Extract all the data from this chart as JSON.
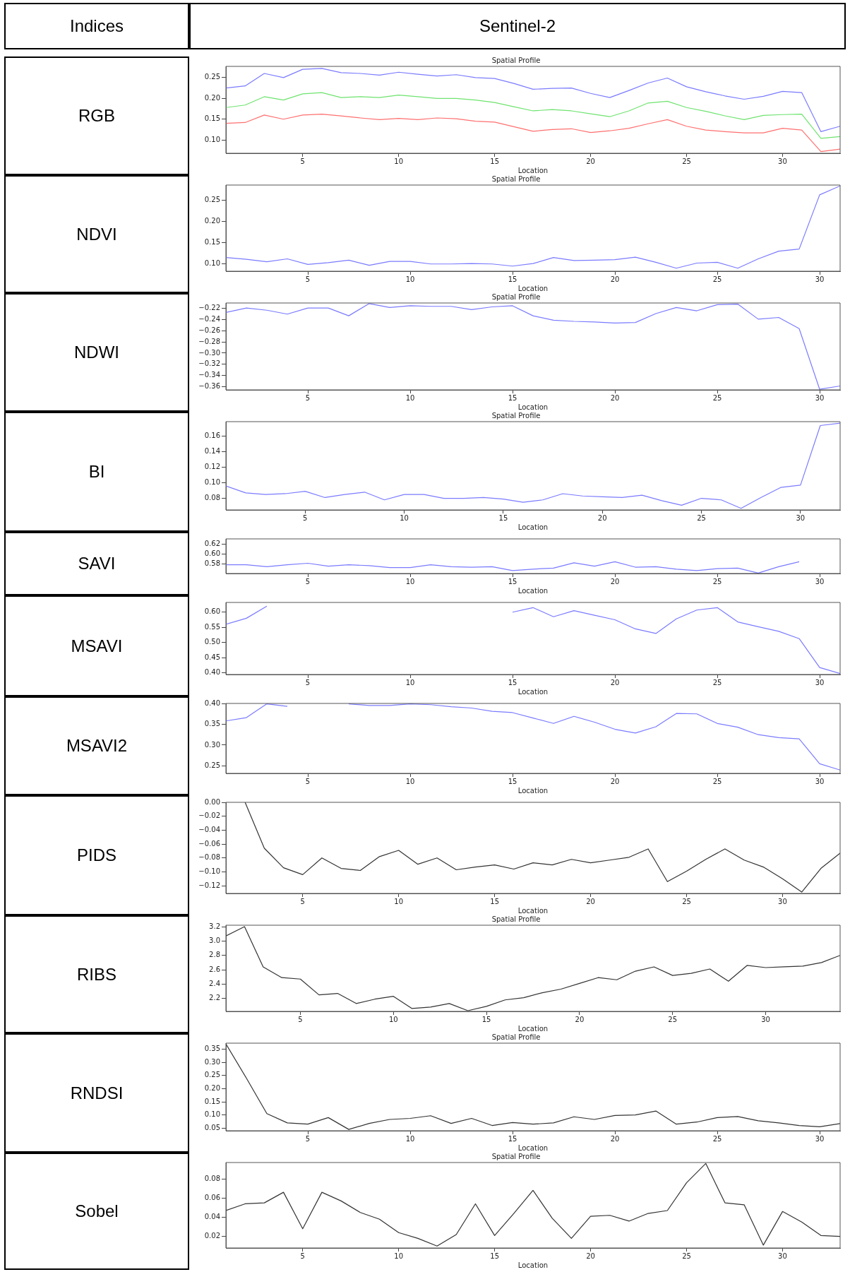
{
  "chart_data": [
    {
      "type": "line",
      "title": "Spatial Profile",
      "xlabel": "Location",
      "annotations": [
        "Indices",
        "Sentinel-2",
        "RGB"
      ],
      "xlim": [
        1,
        33
      ],
      "xticks": [
        5,
        10,
        15,
        20,
        25,
        30
      ],
      "ylim": [
        0.068,
        0.277
      ],
      "yticks": [
        {
          "value": 0.1,
          "label": "0.10"
        },
        0.15,
        {
          "value": 0.2,
          "label": "0.20"
        },
        0.25
      ],
      "grid": false,
      "legend": false,
      "x": [
        1,
        2,
        3,
        4,
        5,
        6,
        7,
        8,
        9,
        10,
        11,
        12,
        13,
        14,
        15,
        16,
        17,
        18,
        19,
        20,
        21,
        22,
        23,
        24,
        25,
        26,
        27,
        28,
        29,
        30,
        31,
        32,
        33
      ],
      "series": [
        {
          "color": "#7b7bff",
          "values": [
            0.225,
            0.23,
            0.26,
            0.25,
            0.27,
            0.272,
            0.262,
            0.26,
            0.256,
            0.263,
            0.258,
            0.254,
            0.257,
            0.25,
            0.248,
            0.236,
            0.222,
            0.224,
            0.225,
            0.212,
            0.202,
            0.219,
            0.237,
            0.249,
            0.228,
            0.216,
            0.206,
            0.198,
            0.205,
            0.217,
            0.214,
            0.12,
            0.133
          ]
        },
        {
          "color": "#6fe36f",
          "values": [
            0.178,
            0.184,
            0.204,
            0.196,
            0.211,
            0.214,
            0.202,
            0.204,
            0.202,
            0.208,
            0.204,
            0.2,
            0.2,
            0.196,
            0.19,
            0.18,
            0.17,
            0.173,
            0.17,
            0.163,
            0.156,
            0.17,
            0.189,
            0.193,
            0.178,
            0.169,
            0.158,
            0.149,
            0.159,
            0.161,
            0.162,
            0.104,
            0.108
          ]
        },
        {
          "color": "#ff6f6f",
          "values": [
            0.14,
            0.142,
            0.16,
            0.15,
            0.16,
            0.162,
            0.158,
            0.153,
            0.149,
            0.152,
            0.149,
            0.153,
            0.151,
            0.145,
            0.143,
            0.132,
            0.121,
            0.125,
            0.127,
            0.118,
            0.122,
            0.128,
            0.139,
            0.149,
            0.133,
            0.124,
            0.12,
            0.117,
            0.117,
            0.128,
            0.124,
            0.072,
            0.078
          ]
        }
      ]
    },
    {
      "type": "line",
      "title": "Spatial Profile",
      "xlabel": "Location",
      "annotations": [
        "NDVI"
      ],
      "xlim": [
        1,
        31
      ],
      "xticks": [
        5,
        10,
        15,
        20,
        25,
        30
      ],
      "ylim": [
        0.083,
        0.285
      ],
      "yticks": [
        {
          "value": 0.1,
          "label": "0.10"
        },
        0.15,
        {
          "value": 0.2,
          "label": "0.20"
        },
        0.25
      ],
      "grid": false,
      "legend": false,
      "x": [
        1,
        2,
        3,
        4,
        5,
        6,
        7,
        8,
        9,
        10,
        11,
        12,
        13,
        14,
        15,
        16,
        17,
        18,
        19,
        20,
        21,
        22,
        23,
        24,
        25,
        26,
        27,
        28,
        29,
        30,
        31
      ],
      "series": [
        {
          "color": "#7b7bff",
          "values": [
            0.115,
            0.111,
            0.105,
            0.112,
            0.099,
            0.103,
            0.109,
            0.097,
            0.106,
            0.106,
            0.1,
            0.1,
            0.101,
            0.1,
            0.095,
            0.101,
            0.115,
            0.108,
            0.109,
            0.11,
            0.116,
            0.104,
            0.09,
            0.102,
            0.104,
            0.09,
            0.112,
            0.13,
            0.135,
            0.262,
            0.283
          ]
        }
      ]
    },
    {
      "type": "line",
      "title": "Spatial Profile",
      "xlabel": "Location",
      "annotations": [
        "NDWI"
      ],
      "xlim": [
        1,
        31
      ],
      "xticks": [
        5,
        10,
        15,
        20,
        25,
        30
      ],
      "ylim": [
        -0.366,
        -0.21
      ],
      "yticks": [
        {
          "value": -0.36,
          "label": "−0.36"
        },
        {
          "value": -0.34,
          "label": "−0.34"
        },
        {
          "value": -0.32,
          "label": "−0.32"
        },
        {
          "value": -0.3,
          "label": "−0.30"
        },
        {
          "value": -0.28,
          "label": "−0.28"
        },
        {
          "value": -0.26,
          "label": "−0.26"
        },
        {
          "value": -0.24,
          "label": "−0.24"
        },
        {
          "value": -0.22,
          "label": "−0.22"
        }
      ],
      "grid": false,
      "legend": false,
      "x": [
        1,
        2,
        3,
        4,
        5,
        6,
        7,
        8,
        9,
        10,
        11,
        12,
        13,
        14,
        15,
        16,
        17,
        18,
        19,
        20,
        21,
        22,
        23,
        24,
        25,
        26,
        27,
        28,
        29,
        30,
        31
      ],
      "series": [
        {
          "color": "#7b7bff",
          "values": [
            -0.227,
            -0.219,
            -0.223,
            -0.23,
            -0.219,
            -0.219,
            -0.233,
            -0.211,
            -0.218,
            -0.215,
            -0.216,
            -0.216,
            -0.222,
            -0.217,
            -0.215,
            -0.233,
            -0.241,
            -0.243,
            -0.244,
            -0.246,
            -0.245,
            -0.229,
            -0.218,
            -0.224,
            -0.213,
            -0.212,
            -0.239,
            -0.236,
            -0.256,
            -0.365,
            -0.359
          ]
        }
      ]
    },
    {
      "type": "line",
      "title": "Spatial Profile",
      "xlabel": "Location",
      "annotations": [
        "BI"
      ],
      "xlim": [
        1,
        32
      ],
      "xticks": [
        5,
        10,
        15,
        20,
        25,
        30
      ],
      "ylim": [
        0.065,
        0.179
      ],
      "yticks": [
        0.08,
        {
          "value": 0.1,
          "label": "0.10"
        },
        0.12,
        0.14,
        0.16
      ],
      "grid": false,
      "legend": false,
      "x": [
        1,
        2,
        3,
        4,
        5,
        6,
        7,
        8,
        9,
        10,
        11,
        12,
        13,
        14,
        15,
        16,
        17,
        18,
        19,
        20,
        21,
        22,
        23,
        24,
        25,
        26,
        27,
        28,
        29,
        30,
        31,
        32
      ],
      "series": [
        {
          "color": "#7b7bff",
          "values": [
            0.096,
            0.087,
            0.085,
            0.086,
            0.089,
            0.081,
            0.085,
            0.088,
            0.078,
            0.085,
            0.085,
            0.08,
            0.08,
            0.081,
            0.079,
            0.075,
            0.078,
            0.086,
            0.083,
            0.082,
            0.081,
            0.084,
            0.077,
            0.071,
            0.08,
            0.078,
            0.067,
            0.081,
            0.094,
            0.097,
            0.174,
            0.177
          ]
        }
      ]
    },
    {
      "type": "line",
      "xlabel": "Location",
      "annotations": [
        "SAVI"
      ],
      "xlim": [
        1,
        31
      ],
      "xticks": [
        5,
        10,
        15,
        20,
        25,
        30
      ],
      "ylim": [
        0.56,
        0.631
      ],
      "yticks": [
        0.58,
        {
          "value": 0.6,
          "label": "0.60"
        },
        0.62
      ],
      "grid": false,
      "legend": false,
      "x": [
        1,
        2,
        3,
        4,
        5,
        6,
        7,
        8,
        9,
        10,
        11,
        12,
        13,
        14,
        15,
        16,
        17,
        18,
        19,
        20,
        21,
        22,
        23,
        24,
        25,
        26,
        27,
        28,
        29
      ],
      "series": [
        {
          "color": "#7b7bff",
          "values": [
            0.578,
            0.578,
            0.574,
            0.578,
            0.581,
            0.575,
            0.578,
            0.576,
            0.572,
            0.572,
            0.578,
            0.574,
            0.573,
            0.574,
            0.566,
            0.569,
            0.571,
            0.582,
            0.575,
            0.584,
            0.573,
            0.574,
            0.569,
            0.566,
            0.57,
            0.571,
            0.561,
            0.574,
            0.584
          ]
        }
      ]
    },
    {
      "type": "line",
      "xlabel": "Location",
      "annotations": [
        "MSAVI"
      ],
      "xlim": [
        1,
        31
      ],
      "xticks": [
        5,
        10,
        15,
        20,
        25,
        30
      ],
      "ylim": [
        0.395,
        0.632
      ],
      "yticks": [
        {
          "value": 0.4,
          "label": "0.40"
        },
        0.45,
        {
          "value": 0.5,
          "label": "0.50"
        },
        0.55,
        {
          "value": 0.6,
          "label": "0.60"
        }
      ],
      "grid": false,
      "legend": false,
      "x": [
        1,
        2,
        3,
        4,
        5,
        6,
        7,
        8,
        9,
        10,
        11,
        12,
        13,
        14,
        15,
        16,
        17,
        18,
        19,
        20,
        21,
        22,
        23,
        24,
        25,
        26,
        27,
        28,
        29,
        30,
        31
      ],
      "series": [
        {
          "color": "#7b7bff",
          "values": [
            0.56,
            0.58,
            0.62,
            null,
            null,
            null,
            null,
            null,
            null,
            null,
            null,
            null,
            null,
            null,
            0.6,
            0.615,
            0.585,
            0.605,
            0.59,
            0.575,
            0.545,
            0.53,
            0.578,
            0.607,
            0.615,
            0.568,
            0.552,
            0.537,
            0.513,
            0.418,
            0.398
          ]
        }
      ]
    },
    {
      "type": "line",
      "xlabel": "Location",
      "annotations": [
        "MSAVI2"
      ],
      "xlim": [
        1,
        31
      ],
      "xticks": [
        5,
        10,
        15,
        20,
        25,
        30
      ],
      "ylim": [
        0.232,
        0.4
      ],
      "yticks": [
        0.25,
        {
          "value": 0.3,
          "label": "0.30"
        },
        0.35,
        {
          "value": 0.4,
          "label": "0.40"
        }
      ],
      "grid": false,
      "legend": false,
      "x": [
        1,
        2,
        3,
        4,
        5,
        6,
        7,
        8,
        9,
        10,
        11,
        12,
        13,
        14,
        15,
        16,
        17,
        18,
        19,
        20,
        21,
        22,
        23,
        24,
        25,
        26,
        27,
        28,
        29,
        30,
        31
      ],
      "series": [
        {
          "color": "#7b7bff",
          "values": [
            0.358,
            0.366,
            0.399,
            0.393,
            null,
            null,
            0.399,
            0.395,
            0.395,
            0.399,
            0.397,
            0.392,
            0.389,
            0.381,
            0.378,
            0.365,
            0.352,
            0.369,
            0.355,
            0.338,
            0.329,
            0.344,
            0.376,
            0.375,
            0.352,
            0.343,
            0.325,
            0.318,
            0.315,
            0.255,
            0.24
          ]
        }
      ]
    },
    {
      "type": "line",
      "xlabel": "Location",
      "annotations": [
        "PIDS"
      ],
      "xlim": [
        1,
        33
      ],
      "xticks": [
        5,
        10,
        15,
        20,
        25,
        30
      ],
      "ylim": [
        -0.131,
        0
      ],
      "yticks": [
        {
          "value": -0.12,
          "label": "−0.12"
        },
        {
          "value": -0.1,
          "label": "−0.10"
        },
        {
          "value": -0.08,
          "label": "−0.08"
        },
        {
          "value": -0.06,
          "label": "−0.06"
        },
        {
          "value": -0.04,
          "label": "−0.04"
        },
        {
          "value": -0.02,
          "label": "−0.02"
        },
        {
          "value": 0,
          "label": "0.00"
        }
      ],
      "grid": false,
      "legend": false,
      "x": [
        2,
        3,
        4,
        5,
        6,
        7,
        8,
        9,
        10,
        11,
        12,
        13,
        14,
        15,
        16,
        17,
        18,
        19,
        20,
        21,
        22,
        23,
        24,
        25,
        26,
        27,
        28,
        29,
        30,
        31,
        32,
        33
      ],
      "series": [
        {
          "color": "#333333",
          "values": [
            0,
            -0.066,
            -0.094,
            -0.104,
            -0.08,
            -0.095,
            -0.098,
            -0.078,
            -0.069,
            -0.089,
            -0.08,
            -0.097,
            -0.093,
            -0.09,
            -0.096,
            -0.087,
            -0.09,
            -0.082,
            -0.087,
            -0.083,
            -0.079,
            -0.067,
            -0.114,
            -0.099,
            -0.082,
            -0.067,
            -0.083,
            -0.093,
            -0.11,
            -0.129,
            -0.095,
            -0.073
          ]
        }
      ]
    },
    {
      "type": "line",
      "title": "Spatial Profile",
      "xlabel": "Location",
      "annotations": [
        "RIBS"
      ],
      "xlim": [
        1,
        34
      ],
      "xticks": [
        5,
        10,
        15,
        20,
        25,
        30
      ],
      "ylim": [
        2.02,
        3.22
      ],
      "yticks": [
        2.2,
        2.4,
        2.6,
        2.8,
        {
          "value": 3,
          "label": "3.0"
        },
        3.2
      ],
      "grid": false,
      "legend": false,
      "x": [
        1,
        2,
        3,
        4,
        5,
        6,
        7,
        8,
        9,
        10,
        11,
        12,
        13,
        14,
        15,
        16,
        17,
        18,
        19,
        20,
        21,
        22,
        23,
        24,
        25,
        26,
        27,
        28,
        29,
        30,
        31,
        32,
        33,
        34
      ],
      "series": [
        {
          "color": "#333333",
          "values": [
            3.07,
            3.2,
            2.64,
            2.49,
            2.47,
            2.25,
            2.27,
            2.13,
            2.19,
            2.23,
            2.06,
            2.08,
            2.13,
            2.03,
            2.09,
            2.18,
            2.21,
            2.28,
            2.33,
            2.41,
            2.49,
            2.46,
            2.58,
            2.64,
            2.52,
            2.55,
            2.61,
            2.44,
            2.66,
            2.63,
            2.64,
            2.65,
            2.7,
            2.8
          ]
        }
      ]
    },
    {
      "type": "line",
      "title": "Spatial Profile",
      "xlabel": "Location",
      "annotations": [
        "RNDSI"
      ],
      "xlim": [
        1,
        31
      ],
      "xticks": [
        5,
        10,
        15,
        20,
        25,
        30
      ],
      "ylim": [
        0.04,
        0.373
      ],
      "yticks": [
        0.05,
        {
          "value": 0.1,
          "label": "0.10"
        },
        0.15,
        {
          "value": 0.2,
          "label": "0.20"
        },
        0.25,
        {
          "value": 0.3,
          "label": "0.30"
        },
        0.35
      ],
      "grid": false,
      "legend": false,
      "x": [
        1,
        2,
        3,
        4,
        5,
        6,
        7,
        8,
        9,
        10,
        11,
        12,
        13,
        14,
        15,
        16,
        17,
        18,
        19,
        20,
        21,
        22,
        23,
        24,
        25,
        26,
        27,
        28,
        29,
        30,
        31
      ],
      "series": [
        {
          "color": "#333333",
          "values": [
            0.37,
            0.24,
            0.105,
            0.07,
            0.065,
            0.09,
            0.045,
            0.068,
            0.083,
            0.087,
            0.097,
            0.068,
            0.087,
            0.06,
            0.071,
            0.065,
            0.07,
            0.093,
            0.083,
            0.098,
            0.1,
            0.115,
            0.065,
            0.073,
            0.09,
            0.094,
            0.078,
            0.07,
            0.06,
            0.055,
            0.067
          ]
        }
      ]
    },
    {
      "type": "line",
      "title": "Spatial Profile",
      "xlabel": "Location",
      "annotations": [
        "Sobel"
      ],
      "xlim": [
        1,
        33
      ],
      "xticks": [
        5,
        10,
        15,
        20,
        25,
        30
      ],
      "ylim": [
        0.008,
        0.097
      ],
      "yticks": [
        0.02,
        0.04,
        0.06,
        0.08
      ],
      "grid": false,
      "legend": false,
      "x": [
        1,
        2,
        3,
        4,
        5,
        6,
        7,
        8,
        9,
        10,
        11,
        12,
        13,
        14,
        15,
        16,
        17,
        18,
        19,
        20,
        21,
        22,
        23,
        24,
        25,
        26,
        27,
        28,
        29,
        30,
        31,
        32,
        33
      ],
      "series": [
        {
          "color": "#333333",
          "values": [
            0.047,
            0.054,
            0.055,
            0.066,
            0.028,
            0.066,
            0.057,
            0.045,
            0.038,
            0.024,
            0.018,
            0.01,
            0.022,
            0.054,
            0.021,
            0.044,
            0.068,
            0.039,
            0.018,
            0.041,
            0.042,
            0.036,
            0.044,
            0.047,
            0.076,
            0.096,
            0.055,
            0.053,
            0.011,
            0.046,
            0.035,
            0.021,
            0.02
          ]
        }
      ]
    }
  ]
}
